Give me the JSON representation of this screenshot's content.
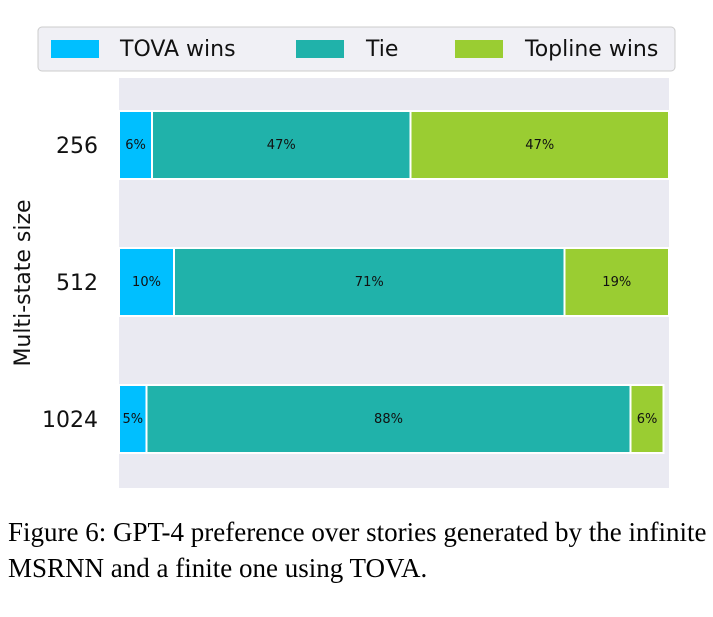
{
  "chart_data": {
    "type": "bar",
    "orientation": "horizontal",
    "stacked": true,
    "normalized_percent": true,
    "categories": [
      "256",
      "512",
      "1024"
    ],
    "series": [
      {
        "name": "TOVA wins",
        "values": [
          6,
          10,
          5
        ],
        "labels": [
          "6%",
          "10%",
          "5%"
        ],
        "color": "#00BFFF"
      },
      {
        "name": "Tie",
        "values": [
          47,
          71,
          88
        ],
        "labels": [
          "47%",
          "71%",
          "88%"
        ],
        "color": "#20B2AA"
      },
      {
        "name": "Topline wins",
        "values": [
          47,
          19,
          6
        ],
        "labels": [
          "47%",
          "19%",
          "6%"
        ],
        "color": "#9ACD32"
      }
    ],
    "ylabel": "Multi-state size",
    "xlim": [
      0,
      100
    ],
    "x_ticks_visible": false,
    "legend_position": "top",
    "grid": false,
    "background_color": "#EAEAF2"
  },
  "caption": "Figure 6: GPT-4 preference over stories generated by the infinite MSRNN and a finite one using TOVA."
}
